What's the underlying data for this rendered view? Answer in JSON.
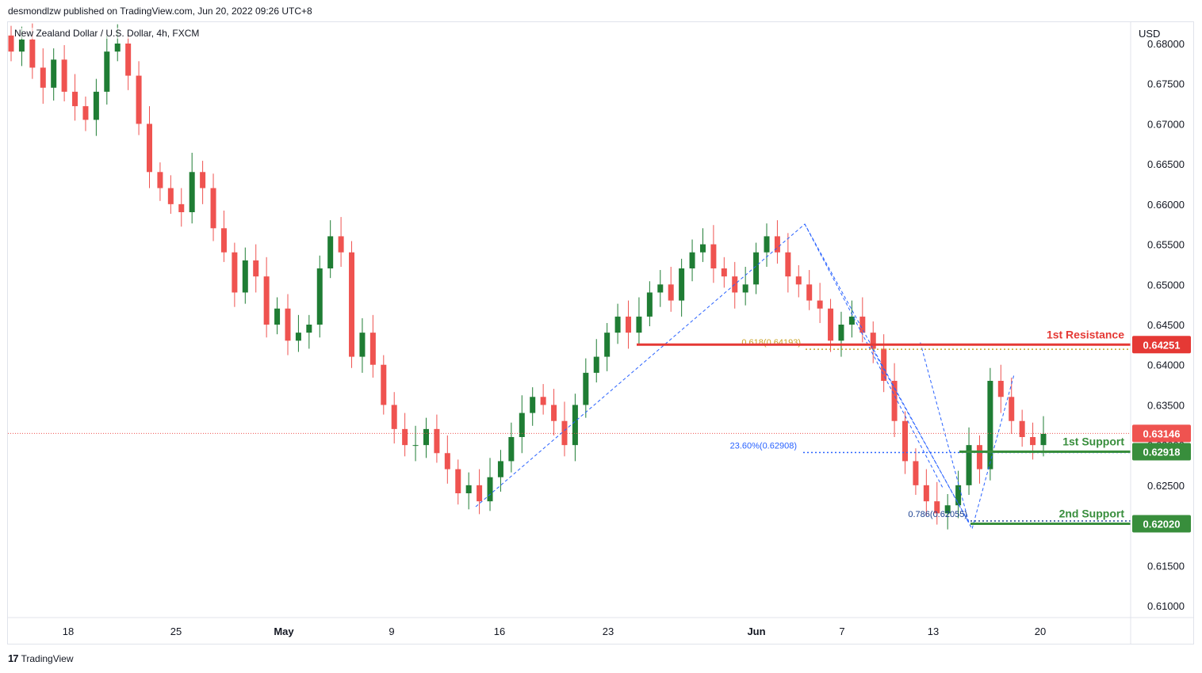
{
  "publisher_line": "desmondlzw published on TradingView.com, Jun 20, 2022 09:26 UTC+8",
  "symbol_line": "New Zealand Dollar / U.S. Dollar, 4h, FXCM",
  "footer": {
    "logo": "17",
    "brand": "TradingView"
  },
  "colors": {
    "up": "#26a69a",
    "upDark": "#1f7d34",
    "down": "#ef5350",
    "resistance": "#e53935",
    "support": "#388e3c",
    "fib618": "#c9a227",
    "fib236": "#2962ff",
    "fib786": "#1a3f8f"
  },
  "chart_data": {
    "type": "candlestick",
    "currency_label": "USD",
    "y_ticks": [
      "0.68000",
      "0.67500",
      "0.67000",
      "0.66500",
      "0.66000",
      "0.65500",
      "0.65000",
      "0.64500",
      "0.64000",
      "0.63500",
      "0.63000",
      "0.62500",
      "0.62000",
      "0.61500",
      "0.61000"
    ],
    "x_ticks": [
      {
        "label": "18",
        "bold": false
      },
      {
        "label": "25",
        "bold": false
      },
      {
        "label": "May",
        "bold": true
      },
      {
        "label": "9",
        "bold": false
      },
      {
        "label": "16",
        "bold": false
      },
      {
        "label": "23",
        "bold": false
      },
      {
        "label": "Jun",
        "bold": true
      },
      {
        "label": "7",
        "bold": false
      },
      {
        "label": "13",
        "bold": false
      },
      {
        "label": "20",
        "bold": false
      }
    ],
    "ylim": [
      0.609,
      0.681
    ],
    "current_price": "0.63146",
    "levels": [
      {
        "name": "1st Resistance",
        "value": "0.64251",
        "kind": "resistance"
      },
      {
        "name": "1st Support",
        "value": "0.62918",
        "kind": "support"
      },
      {
        "name": "2nd Support",
        "value": "0.62020",
        "kind": "support"
      }
    ],
    "fib_labels": [
      {
        "text": "0.618(0.64193)",
        "value": 0.64193,
        "kind": "fib618"
      },
      {
        "text": "23.60%(0.62908)",
        "value": 0.62908,
        "kind": "fib236"
      },
      {
        "text": "0.786(0.62055)",
        "value": 0.62055,
        "kind": "fib786"
      }
    ],
    "price_path": [
      0.679,
      0.6805,
      0.677,
      0.6745,
      0.678,
      0.674,
      0.6722,
      0.6705,
      0.674,
      0.679,
      0.68,
      0.676,
      0.67,
      0.664,
      0.662,
      0.66,
      0.659,
      0.664,
      0.662,
      0.657,
      0.654,
      0.649,
      0.653,
      0.651,
      0.645,
      0.647,
      0.643,
      0.644,
      0.645,
      0.652,
      0.656,
      0.654,
      0.641,
      0.644,
      0.64,
      0.635,
      0.632,
      0.63,
      0.63,
      0.632,
      0.629,
      0.627,
      0.624,
      0.625,
      0.623,
      0.626,
      0.628,
      0.631,
      0.634,
      0.636,
      0.635,
      0.633,
      0.63,
      0.635,
      0.639,
      0.641,
      0.644,
      0.646,
      0.644,
      0.646,
      0.649,
      0.65,
      0.648,
      0.652,
      0.654,
      0.655,
      0.652,
      0.651,
      0.649,
      0.65,
      0.654,
      0.656,
      0.654,
      0.651,
      0.65,
      0.648,
      0.647,
      0.643,
      0.645,
      0.646,
      0.644,
      0.642,
      0.638,
      0.633,
      0.628,
      0.625,
      0.623,
      0.6215,
      0.6225,
      0.625,
      0.63,
      0.627,
      0.638,
      0.636,
      0.633,
      0.631,
      0.63,
      0.6314
    ]
  }
}
